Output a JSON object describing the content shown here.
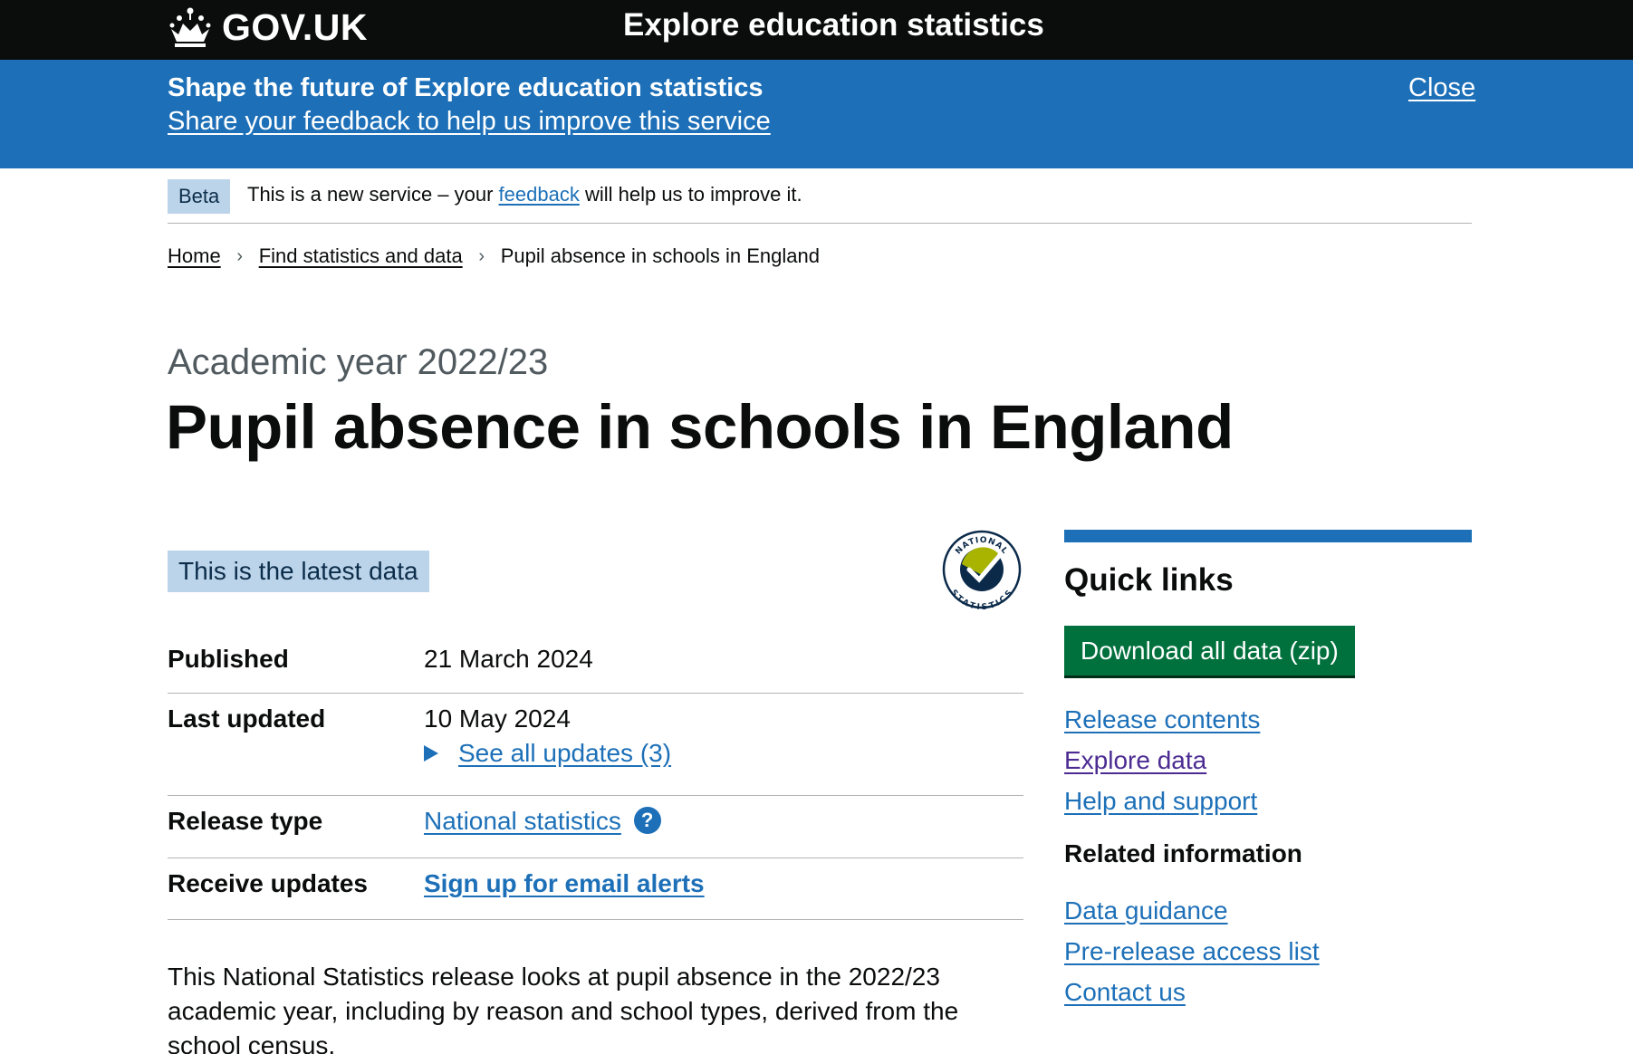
{
  "header": {
    "logo_text": "GOV.UK",
    "service_name": "Explore education statistics"
  },
  "banner": {
    "title": "Shape the future of Explore education statistics",
    "link": "Share your feedback to help us improve this service",
    "close": "Close"
  },
  "phase": {
    "tag": "Beta",
    "text_before": "This is a new service – your ",
    "link": "feedback",
    "text_after": " will help us to improve it."
  },
  "breadcrumb": {
    "items": [
      "Home",
      "Find statistics and data",
      "Pupil absence in schools in England"
    ]
  },
  "page": {
    "caption": "Academic year 2022/23",
    "title": "Pupil absence in schools in England",
    "latest_tag": "This is the latest data"
  },
  "badge": {
    "top_text": "NATIONAL",
    "bottom_text": "STATISTICS"
  },
  "summary": {
    "published_key": "Published",
    "published_value": "21 March 2024",
    "updated_key": "Last updated",
    "updated_value": "10 May 2024",
    "updates_link": "See all updates (3)",
    "release_type_key": "Release type",
    "release_type_value": "National statistics",
    "help_glyph": "?",
    "receive_key": "Receive updates",
    "receive_link": "Sign up for email alerts"
  },
  "intro": "This National Statistics release looks at pupil absence in the 2022/23 academic year, including by reason and school types, derived from the school census.",
  "sidebar": {
    "title": "Quick links",
    "download_button": "Download all data (zip)",
    "links": [
      "Release contents",
      "Explore data",
      "Help and support"
    ],
    "related_title": "Related information",
    "related_links": [
      "Data guidance",
      "Pre-release access list",
      "Contact us"
    ]
  },
  "colors": {
    "header_bg": "#0b0c0c",
    "banner_bg": "#1d70b8",
    "link": "#1d70b8",
    "visited_link": "#4c2c92",
    "button_green": "#00703c",
    "tag_bg": "#bbd4ea"
  },
  "icons": [
    "crown-icon",
    "chevron-right-icon",
    "triangle-right-icon",
    "help-circle-icon",
    "national-statistics-badge"
  ]
}
